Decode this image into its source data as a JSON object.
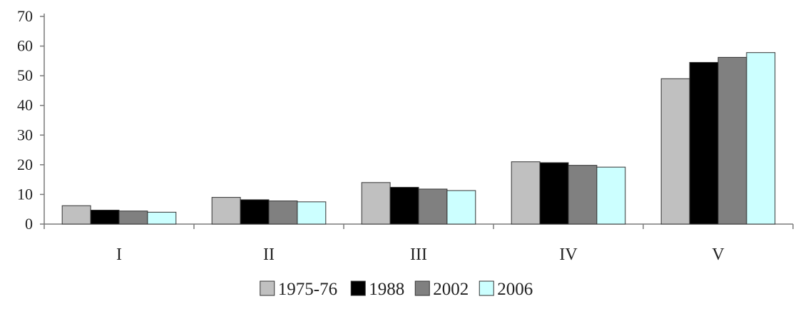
{
  "chart_data": {
    "type": "bar",
    "categories": [
      "I",
      "II",
      "III",
      "IV",
      "V"
    ],
    "series": [
      {
        "name": "1975-76",
        "color": "#c0c0c0",
        "values": [
          6.2,
          9.0,
          14.0,
          21.0,
          49.0
        ]
      },
      {
        "name": "1988",
        "color": "#000000",
        "values": [
          4.7,
          8.2,
          12.4,
          20.7,
          54.5
        ]
      },
      {
        "name": "2002",
        "color": "#808080",
        "values": [
          4.4,
          7.8,
          11.8,
          19.8,
          56.2
        ]
      },
      {
        "name": "2006",
        "color": "#ccffff",
        "values": [
          4.0,
          7.5,
          11.3,
          19.2,
          57.8
        ]
      }
    ],
    "ylim": [
      0,
      70
    ],
    "yticks": [
      0,
      10,
      20,
      30,
      40,
      50,
      60,
      70
    ],
    "grid": false,
    "legend_position": "bottom-center",
    "title": "",
    "xlabel": "",
    "ylabel": ""
  }
}
